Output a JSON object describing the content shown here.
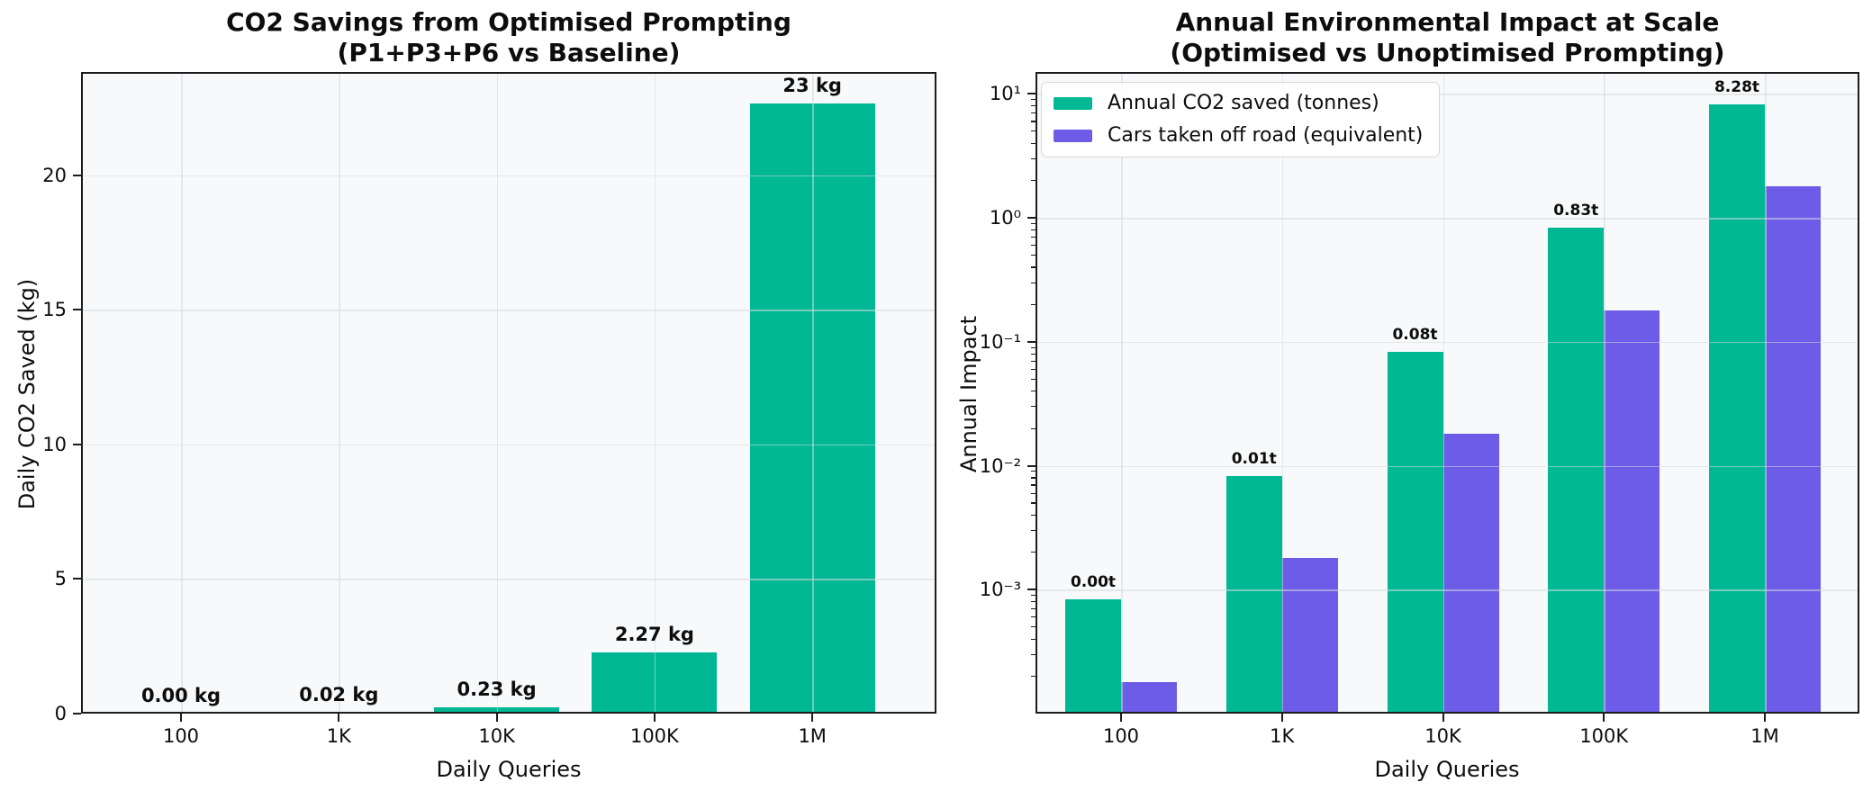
{
  "figure": {
    "background": "#ffffff",
    "plot_background": "#f8f9fa",
    "grid_color": "#d6dadf",
    "spine_color": "#1c1c1c",
    "accent_teal": "#00b894",
    "accent_purple": "#6c5ce7",
    "text_color": "#0d0d0d"
  },
  "chart_data": [
    {
      "type": "bar",
      "title": "CO2 Savings from Optimised Prompting",
      "subtitle": "(P1+P3+P6 vs Baseline)",
      "xlabel": "Daily Queries",
      "ylabel": "Daily CO2 Saved (kg)",
      "categories": [
        "100",
        "1K",
        "10K",
        "100K",
        "1M"
      ],
      "values": [
        0.0023,
        0.023,
        0.23,
        2.27,
        22.66
      ],
      "bar_labels": [
        "0.00 kg",
        "0.02 kg",
        "0.23 kg",
        "2.27 kg",
        "23 kg"
      ],
      "bar_color": "#00b894",
      "yscale": "linear",
      "ylim": [
        0,
        23.83
      ],
      "yticks": [
        0,
        5,
        10,
        15,
        20
      ],
      "ytick_labels": [
        "0",
        "5",
        "10",
        "15",
        "20"
      ],
      "grid": true,
      "legend_position": "none"
    },
    {
      "type": "bar",
      "title": "Annual Environmental Impact at Scale",
      "subtitle": "(Optimised vs Unoptimised Prompting)",
      "xlabel": "Daily Queries",
      "ylabel": "Annual Impact",
      "categories": [
        "100",
        "1K",
        "10K",
        "100K",
        "1M"
      ],
      "series": [
        {
          "name": "Annual CO2 saved (tonnes)",
          "color": "#00b894",
          "values": [
            0.00083,
            0.0083,
            0.083,
            0.83,
            8.28
          ],
          "bar_labels": [
            "0.00t",
            "0.01t",
            "0.08t",
            "0.83t",
            "8.28t"
          ]
        },
        {
          "name": "Cars taken off road (equivalent)",
          "color": "#6c5ce7",
          "values": [
            0.00018,
            0.0018,
            0.018,
            0.18,
            1.8
          ],
          "bar_labels": [
            "",
            "",
            "",
            "",
            ""
          ]
        }
      ],
      "yscale": "log",
      "ylim": [
        0.0001,
        15
      ],
      "ytick_values": [
        10,
        1,
        0.1,
        0.01,
        0.001
      ],
      "ytick_labels": [
        "10¹",
        "10⁰",
        "10⁻¹",
        "10⁻²",
        "10⁻³"
      ],
      "grid": true,
      "legend_position": "upper left"
    }
  ]
}
